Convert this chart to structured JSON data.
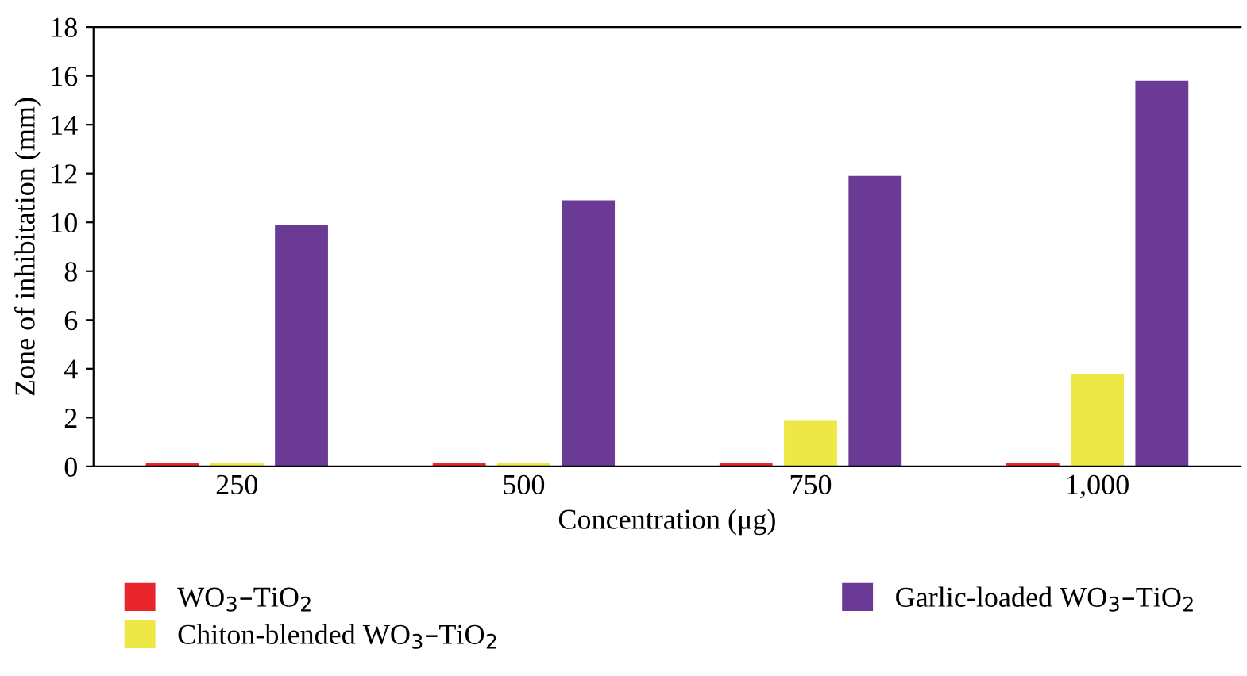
{
  "chart_data": {
    "type": "bar",
    "xlabel": "Concentration (μg)",
    "ylabel": "Zone of inhibitation (mm)",
    "categories": [
      "250",
      "500",
      "750",
      "1,000"
    ],
    "series": [
      {
        "name": "WO$_{3}$–TiO$_{2}$",
        "color": "#e8262b",
        "values": [
          0.15,
          0.15,
          0.15,
          0.15
        ]
      },
      {
        "name": "Chiton-blended WO$_{3}$–TiO$_{2}$",
        "color": "#ede845",
        "values": [
          0.15,
          0.15,
          1.9,
          3.8
        ]
      },
      {
        "name": "Garlic-loaded WO$_{3}$–TiO$_{2}$",
        "color": "#6a3a94",
        "values": [
          9.9,
          10.9,
          11.9,
          15.8
        ]
      }
    ],
    "ylim": [
      0,
      18
    ],
    "yticks": [
      0,
      2,
      4,
      6,
      8,
      10,
      12,
      14,
      16,
      18
    ],
    "grid": false,
    "legend": "bottom"
  }
}
